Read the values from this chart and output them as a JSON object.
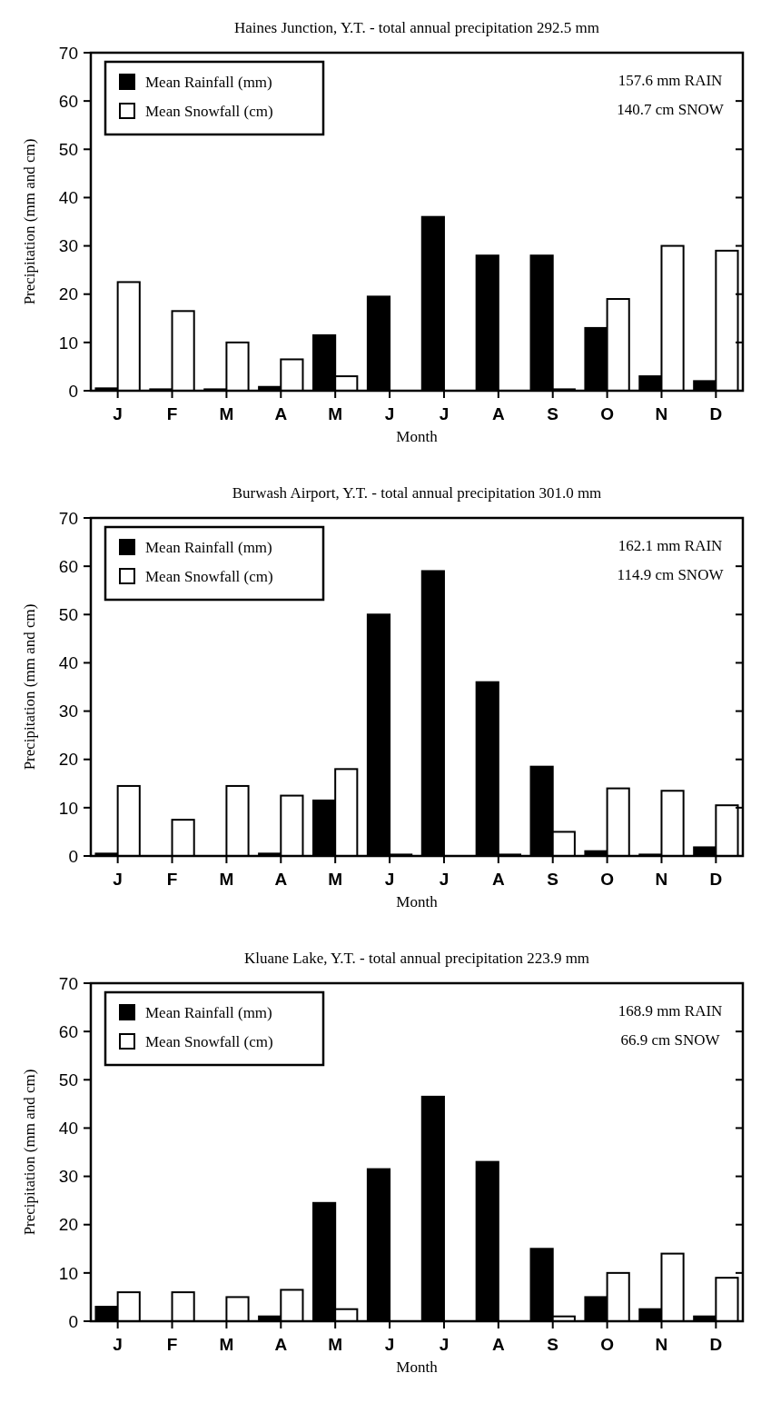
{
  "chart_data": [
    {
      "type": "bar",
      "title": "Haines Junction, Y.T. - total annual precipitation 292.5 mm",
      "xlabel": "Month",
      "ylabel": "Precipitation (mm and cm)",
      "categories": [
        "J",
        "F",
        "M",
        "A",
        "M",
        "J",
        "J",
        "A",
        "S",
        "O",
        "N",
        "D"
      ],
      "series": [
        {
          "name": "Mean Rainfall (mm)",
          "color": "#000000",
          "values": [
            0.5,
            0.3,
            0.3,
            0.8,
            11.5,
            19.5,
            36,
            28,
            28,
            13,
            3,
            2
          ]
        },
        {
          "name": "Mean Snowfall (cm)",
          "color": "#ffffff",
          "values": [
            22.5,
            16.5,
            10,
            6.5,
            3,
            0,
            0,
            0,
            0.3,
            19,
            30,
            29
          ]
        }
      ],
      "ylim": [
        0,
        70
      ],
      "yticks": [
        0,
        10,
        20,
        30,
        40,
        50,
        60,
        70
      ],
      "legend": "top left",
      "grid": false,
      "annotations": [
        "157.6 mm RAIN",
        "140.7 cm SNOW"
      ]
    },
    {
      "type": "bar",
      "title": "Burwash Airport, Y.T. - total annual precipitation 301.0 mm",
      "xlabel": "Month",
      "ylabel": "Precipitation (mm and cm)",
      "categories": [
        "J",
        "F",
        "M",
        "A",
        "M",
        "J",
        "J",
        "A",
        "S",
        "O",
        "N",
        "D"
      ],
      "series": [
        {
          "name": "Mean Rainfall (mm)",
          "color": "#000000",
          "values": [
            0.5,
            0,
            0,
            0.5,
            11.5,
            50,
            59,
            36,
            18.5,
            1,
            0.3,
            1.8
          ]
        },
        {
          "name": "Mean Snowfall (cm)",
          "color": "#ffffff",
          "values": [
            14.5,
            7.5,
            14.5,
            12.5,
            18,
            0.3,
            0,
            0.3,
            5,
            14,
            13.5,
            10.5
          ]
        }
      ],
      "ylim": [
        0,
        70
      ],
      "yticks": [
        0,
        10,
        20,
        30,
        40,
        50,
        60,
        70
      ],
      "legend": "top left",
      "grid": false,
      "annotations": [
        "162.1 mm RAIN",
        "114.9 cm SNOW"
      ]
    },
    {
      "type": "bar",
      "title": "Kluane Lake, Y.T. - total annual precipitation 223.9 mm",
      "xlabel": "Month",
      "ylabel": "Precipitation (mm and cm)",
      "categories": [
        "J",
        "F",
        "M",
        "A",
        "M",
        "J",
        "J",
        "A",
        "S",
        "O",
        "N",
        "D"
      ],
      "series": [
        {
          "name": "Mean Rainfall (mm)",
          "color": "#000000",
          "values": [
            3,
            0,
            0,
            1,
            24.5,
            31.5,
            46.5,
            33,
            15,
            5,
            2.5,
            1
          ]
        },
        {
          "name": "Mean Snowfall (cm)",
          "color": "#ffffff",
          "values": [
            6,
            6,
            5,
            6.5,
            2.5,
            0,
            0,
            0,
            1,
            10,
            14,
            9
          ]
        }
      ],
      "ylim": [
        0,
        70
      ],
      "yticks": [
        0,
        10,
        20,
        30,
        40,
        50,
        60,
        70
      ],
      "legend": "top left",
      "grid": false,
      "annotations": [
        "168.9 mm RAIN",
        "66.9 cm SNOW"
      ]
    }
  ]
}
